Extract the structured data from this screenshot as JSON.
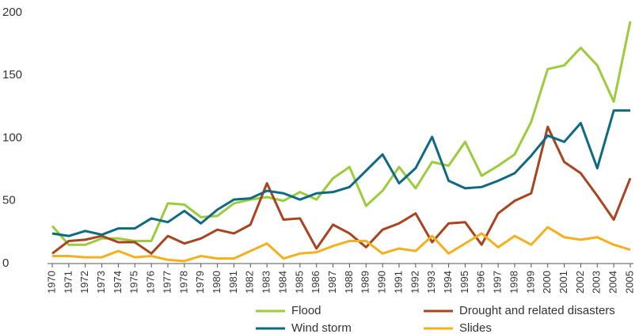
{
  "chart_data": {
    "type": "line",
    "categories": [
      "1970",
      "1971",
      "1972",
      "1973",
      "1974",
      "1975",
      "1976",
      "1977",
      "1978",
      "1979",
      "1980",
      "1981",
      "1982",
      "1983",
      "1984",
      "1985",
      "1986",
      "1987",
      "1988",
      "1989",
      "1990",
      "1991",
      "1992",
      "1993",
      "1994",
      "1995",
      "1996",
      "1997",
      "1998",
      "1999",
      "2000",
      "2001",
      "2002",
      "2003",
      "2004",
      "2005"
    ],
    "series": [
      {
        "name": "Flood",
        "color": "#9ccb3b",
        "values": [
          30,
          15,
          15,
          20,
          20,
          18,
          18,
          48,
          47,
          37,
          38,
          48,
          51,
          53,
          50,
          57,
          51,
          68,
          77,
          46,
          58,
          77,
          60,
          81,
          78,
          97,
          70,
          78,
          87,
          113,
          155,
          158,
          172,
          158,
          129,
          193
        ]
      },
      {
        "name": "Drought and related disasters",
        "color": "#a8441f",
        "values": [
          8,
          18,
          19,
          22,
          17,
          17,
          8,
          22,
          16,
          20,
          27,
          24,
          31,
          64,
          35,
          36,
          12,
          31,
          24,
          13,
          27,
          32,
          40,
          17,
          32,
          33,
          15,
          40,
          50,
          56,
          109,
          81,
          72,
          54,
          35,
          68
        ]
      },
      {
        "name": "Wind storm",
        "color": "#0e6a80",
        "values": [
          24,
          22,
          26,
          23,
          28,
          28,
          36,
          33,
          42,
          32,
          43,
          51,
          52,
          58,
          56,
          51,
          56,
          57,
          61,
          74,
          87,
          64,
          76,
          101,
          66,
          60,
          61,
          66,
          72,
          86,
          102,
          97,
          112,
          76,
          122,
          122
        ]
      },
      {
        "name": "Slides",
        "color": "#f5b01e",
        "values": [
          6,
          6,
          5,
          5,
          10,
          5,
          6,
          3,
          2,
          6,
          4,
          4,
          10,
          16,
          4,
          8,
          9,
          14,
          18,
          18,
          8,
          12,
          10,
          22,
          8,
          16,
          24,
          13,
          22,
          15,
          29,
          21,
          19,
          21,
          15,
          11
        ]
      }
    ],
    "ylim": [
      0,
      200
    ],
    "yticks": [
      0,
      50,
      100,
      150,
      200
    ]
  }
}
